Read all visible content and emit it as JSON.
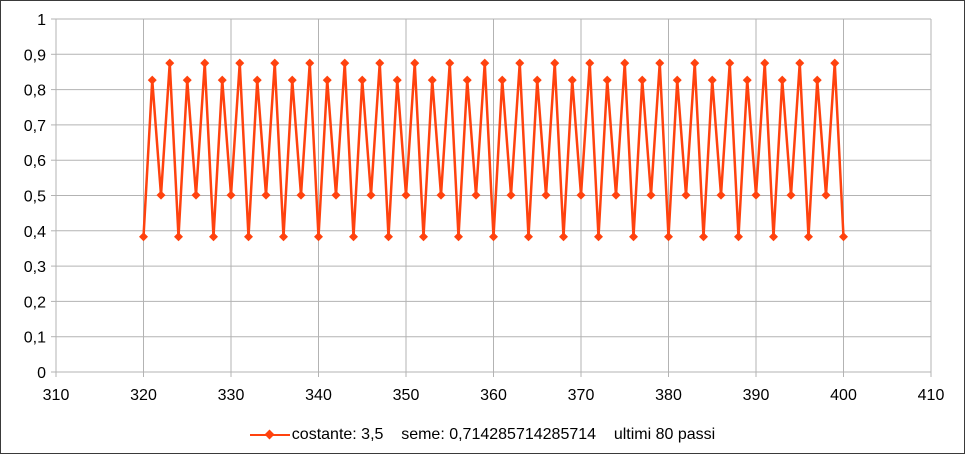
{
  "chart_data": {
    "type": "line",
    "title": "",
    "xlabel": "",
    "ylabel": "",
    "xlim": [
      310,
      410
    ],
    "ylim": [
      0,
      1
    ],
    "x_ticks": [
      "310",
      "320",
      "330",
      "340",
      "350",
      "360",
      "370",
      "380",
      "390",
      "400",
      "410"
    ],
    "y_ticks": [
      "0",
      "0,1",
      "0,2",
      "0,3",
      "0,4",
      "0,5",
      "0,6",
      "0,7",
      "0,8",
      "0,9",
      "1"
    ],
    "grid": true,
    "legend_position": "bottom",
    "series": [
      {
        "name": "costante: 3,5    seme: 0,714285714285714    ultimi 80 passi",
        "color": "#ff420e",
        "marker": "diamond",
        "x": [
          320,
          321,
          322,
          323,
          324,
          325,
          326,
          327,
          328,
          329,
          330,
          331,
          332,
          333,
          334,
          335,
          336,
          337,
          338,
          339,
          340,
          341,
          342,
          343,
          344,
          345,
          346,
          347,
          348,
          349,
          350,
          351,
          352,
          353,
          354,
          355,
          356,
          357,
          358,
          359,
          360,
          361,
          362,
          363,
          364,
          365,
          366,
          367,
          368,
          369,
          370,
          371,
          372,
          373,
          374,
          375,
          376,
          377,
          378,
          379,
          380,
          381,
          382,
          383,
          384,
          385,
          386,
          387,
          388,
          389,
          390,
          391,
          392,
          393,
          394,
          395,
          396,
          397,
          398,
          399,
          400
        ],
        "y": [
          0.383,
          0.827,
          0.501,
          0.875,
          0.383,
          0.827,
          0.501,
          0.875,
          0.383,
          0.827,
          0.501,
          0.875,
          0.383,
          0.827,
          0.501,
          0.875,
          0.383,
          0.827,
          0.501,
          0.875,
          0.383,
          0.827,
          0.501,
          0.875,
          0.383,
          0.827,
          0.501,
          0.875,
          0.383,
          0.827,
          0.501,
          0.875,
          0.383,
          0.827,
          0.501,
          0.875,
          0.383,
          0.827,
          0.501,
          0.875,
          0.383,
          0.827,
          0.501,
          0.875,
          0.383,
          0.827,
          0.501,
          0.875,
          0.383,
          0.827,
          0.501,
          0.875,
          0.383,
          0.827,
          0.501,
          0.875,
          0.383,
          0.827,
          0.501,
          0.875,
          0.383,
          0.827,
          0.501,
          0.875,
          0.383,
          0.827,
          0.501,
          0.875,
          0.383,
          0.827,
          0.501,
          0.875,
          0.383,
          0.827,
          0.501,
          0.875,
          0.383,
          0.827,
          0.501,
          0.875,
          0.383
        ]
      }
    ]
  }
}
